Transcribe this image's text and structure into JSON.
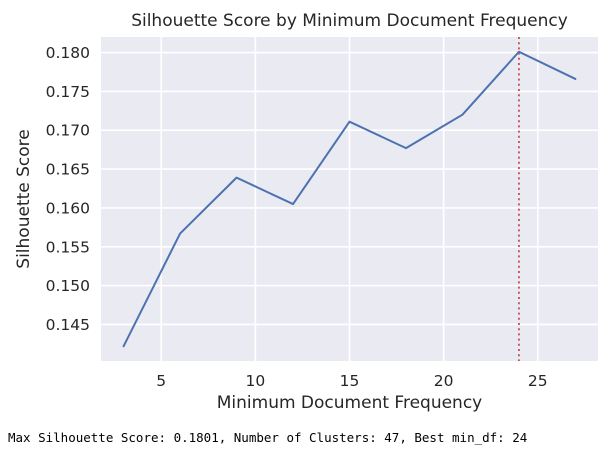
{
  "chart_data": {
    "type": "line",
    "title": "Silhouette Score by Minimum Document Frequency",
    "xlabel": "Minimum Document Frequency",
    "ylabel": "Silhouette Score",
    "x": [
      3,
      6,
      9,
      12,
      15,
      18,
      21,
      24,
      27
    ],
    "series": [
      {
        "values": [
          0.1422,
          0.1567,
          0.1639,
          0.1605,
          0.1711,
          0.1677,
          0.172,
          0.1801,
          0.1766
        ]
      }
    ],
    "xticks": [
      5,
      10,
      15,
      20,
      25
    ],
    "xtick_labels": [
      "5",
      "10",
      "15",
      "20",
      "25"
    ],
    "yticks": [
      0.145,
      0.15,
      0.155,
      0.16,
      0.165,
      0.17,
      0.175,
      0.18
    ],
    "ytick_labels": [
      "0.145",
      "0.150",
      "0.155",
      "0.160",
      "0.165",
      "0.170",
      "0.175",
      "0.180"
    ],
    "xlim": [
      1.8,
      28.2
    ],
    "ylim": [
      0.1403,
      0.182
    ],
    "best_x": 24,
    "grid": true,
    "colors": {
      "line": "#4c72b0",
      "best_line": "#c44e52",
      "plot_background": "#eaeaf2",
      "grid": "#ffffff"
    }
  },
  "caption": "Max Silhouette Score: 0.1801, Number of Clusters: 47, Best min_df: 24"
}
